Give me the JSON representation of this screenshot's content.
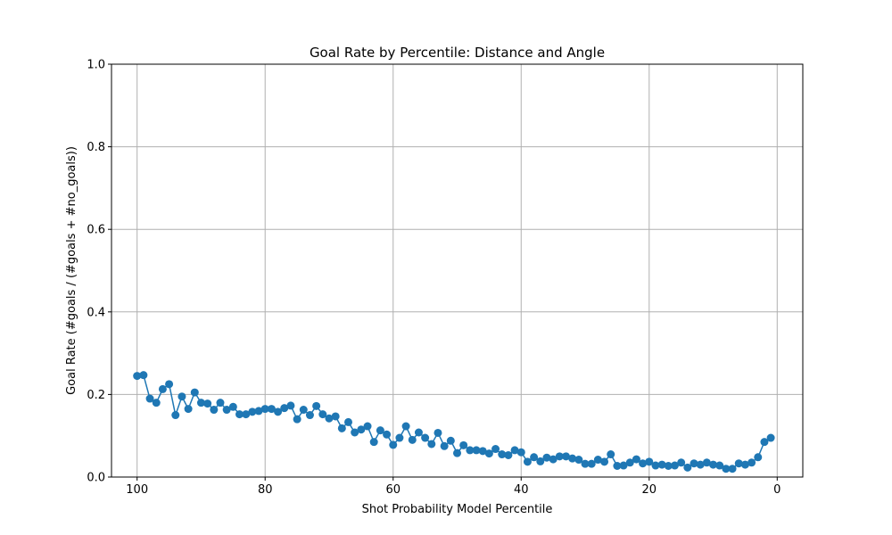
{
  "chart_data": {
    "type": "line",
    "title": "Goal Rate by Percentile: Distance and Angle",
    "xlabel": "Shot Probability Model Percentile",
    "ylabel": "Goal Rate (#goals / (#goals + #no_goals))",
    "xlim": [
      104,
      -4
    ],
    "ylim": [
      0,
      1
    ],
    "x_ticks": [
      100,
      80,
      60,
      40,
      20,
      0
    ],
    "x_tick_labels": [
      "100",
      "80",
      "60",
      "40",
      "20",
      "0"
    ],
    "y_ticks": [
      0,
      0.2,
      0.4,
      0.6,
      0.8,
      1.0
    ],
    "y_tick_labels": [
      "0.0",
      "0.2",
      "0.4",
      "0.6",
      "0.8",
      "1.0"
    ],
    "grid": true,
    "series": [
      {
        "color": "#1f77b4",
        "marker": "circle",
        "x": [
          100,
          99,
          98,
          97,
          96,
          95,
          94,
          93,
          92,
          91,
          90,
          89,
          88,
          87,
          86,
          85,
          84,
          83,
          82,
          81,
          80,
          79,
          78,
          77,
          76,
          75,
          74,
          73,
          72,
          71,
          70,
          69,
          68,
          67,
          66,
          65,
          64,
          63,
          62,
          61,
          60,
          59,
          58,
          57,
          56,
          55,
          54,
          53,
          52,
          51,
          50,
          49,
          48,
          47,
          46,
          45,
          44,
          43,
          42,
          41,
          40,
          39,
          38,
          37,
          36,
          35,
          34,
          33,
          32,
          31,
          30,
          29,
          28,
          27,
          26,
          25,
          24,
          23,
          22,
          21,
          20,
          19,
          18,
          17,
          16,
          15,
          14,
          13,
          12,
          11,
          10,
          9,
          8,
          7,
          6,
          5,
          4,
          3,
          2,
          1
        ],
        "y": [
          0.245,
          0.247,
          0.19,
          0.18,
          0.213,
          0.225,
          0.15,
          0.195,
          0.165,
          0.205,
          0.18,
          0.178,
          0.163,
          0.18,
          0.163,
          0.17,
          0.152,
          0.152,
          0.158,
          0.16,
          0.165,
          0.165,
          0.158,
          0.167,
          0.173,
          0.14,
          0.163,
          0.15,
          0.172,
          0.152,
          0.142,
          0.147,
          0.118,
          0.133,
          0.108,
          0.115,
          0.123,
          0.085,
          0.113,
          0.103,
          0.078,
          0.095,
          0.123,
          0.09,
          0.108,
          0.095,
          0.08,
          0.107,
          0.075,
          0.088,
          0.058,
          0.077,
          0.065,
          0.065,
          0.063,
          0.057,
          0.068,
          0.055,
          0.053,
          0.065,
          0.06,
          0.037,
          0.048,
          0.038,
          0.047,
          0.043,
          0.05,
          0.05,
          0.045,
          0.042,
          0.032,
          0.032,
          0.042,
          0.037,
          0.055,
          0.027,
          0.028,
          0.035,
          0.043,
          0.033,
          0.037,
          0.028,
          0.03,
          0.027,
          0.028,
          0.035,
          0.023,
          0.033,
          0.03,
          0.035,
          0.03,
          0.028,
          0.02,
          0.02,
          0.033,
          0.03,
          0.035,
          0.048,
          0.085,
          0.095
        ]
      }
    ]
  }
}
